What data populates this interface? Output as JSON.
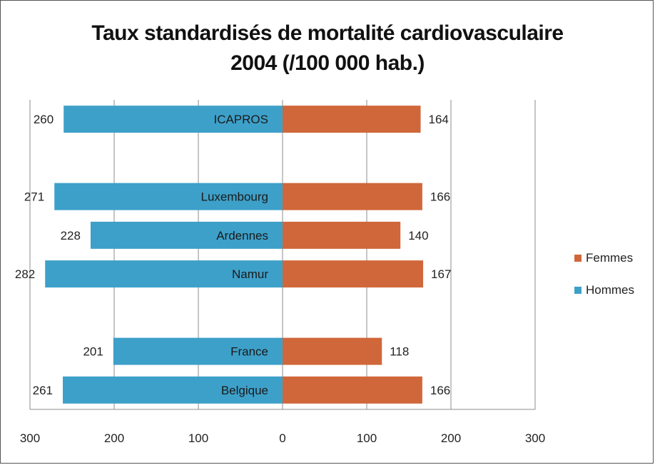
{
  "chart_data": {
    "type": "bar",
    "orientation": "horizontal-butterfly",
    "title": "Taux standardisés de mortalité cardiovasculaire",
    "subtitle": "2004 (/100 000 hab.)",
    "categories": [
      "ICAPROS",
      "",
      "Luxembourg",
      "Ardennes",
      "Namur",
      "",
      "France",
      "Belgique"
    ],
    "series": [
      {
        "name": "Hommes",
        "color": "#3da0c9",
        "values": [
          260,
          null,
          271,
          228,
          282,
          null,
          201,
          261
        ]
      },
      {
        "name": "Femmes",
        "color": "#d0673a",
        "values": [
          164,
          null,
          166,
          140,
          167,
          null,
          118,
          166
        ]
      }
    ],
    "xlim": [
      -300,
      300
    ],
    "x_ticks": [
      "300",
      "200",
      "100",
      "0",
      "100",
      "200",
      "300"
    ],
    "legend_position": "right",
    "grid": "vertical"
  }
}
